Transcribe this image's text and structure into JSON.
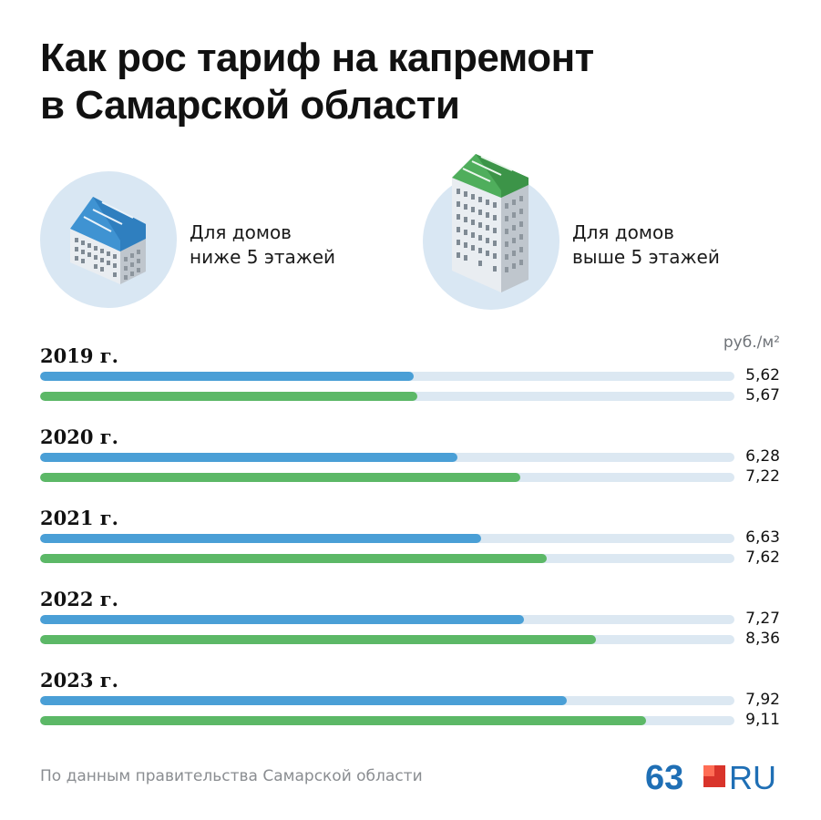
{
  "title_line1": "Как рос тариф на капремонт",
  "title_line2": "в Самарской области",
  "legend": {
    "low": {
      "line1": "Для домов",
      "line2": "ниже 5 этажей",
      "color": "#4a9fd6",
      "icon": "low-rise-building-icon"
    },
    "high": {
      "line1": "Для домов",
      "line2": "выше 5 этажей",
      "color": "#5cb867",
      "icon": "high-rise-building-icon"
    }
  },
  "unit": "руб./м²",
  "source": "По данным правительства Самарской области",
  "logo": {
    "number": "63",
    "suffix": "RU"
  },
  "chart_data": {
    "type": "bar",
    "orientation": "horizontal",
    "categories": [
      "2019 г.",
      "2020 г.",
      "2021 г.",
      "2022 г.",
      "2023 г."
    ],
    "series": [
      {
        "name": "Для домов ниже 5 этажей",
        "values": [
          5.62,
          6.28,
          6.63,
          7.27,
          7.92
        ],
        "labels": [
          "5,62",
          "6,28",
          "6,63",
          "7,27",
          "7,92"
        ],
        "color": "#4a9fd6"
      },
      {
        "name": "Для домов выше 5 этажей",
        "values": [
          5.67,
          7.22,
          7.62,
          8.36,
          9.11
        ],
        "labels": [
          "5,67",
          "7,22",
          "7,62",
          "8,36",
          "9,11"
        ],
        "color": "#5cb867"
      }
    ],
    "xlim": [
      0,
      10.44
    ],
    "track_color": "#dce8f2",
    "ylabel": "руб./м²"
  }
}
